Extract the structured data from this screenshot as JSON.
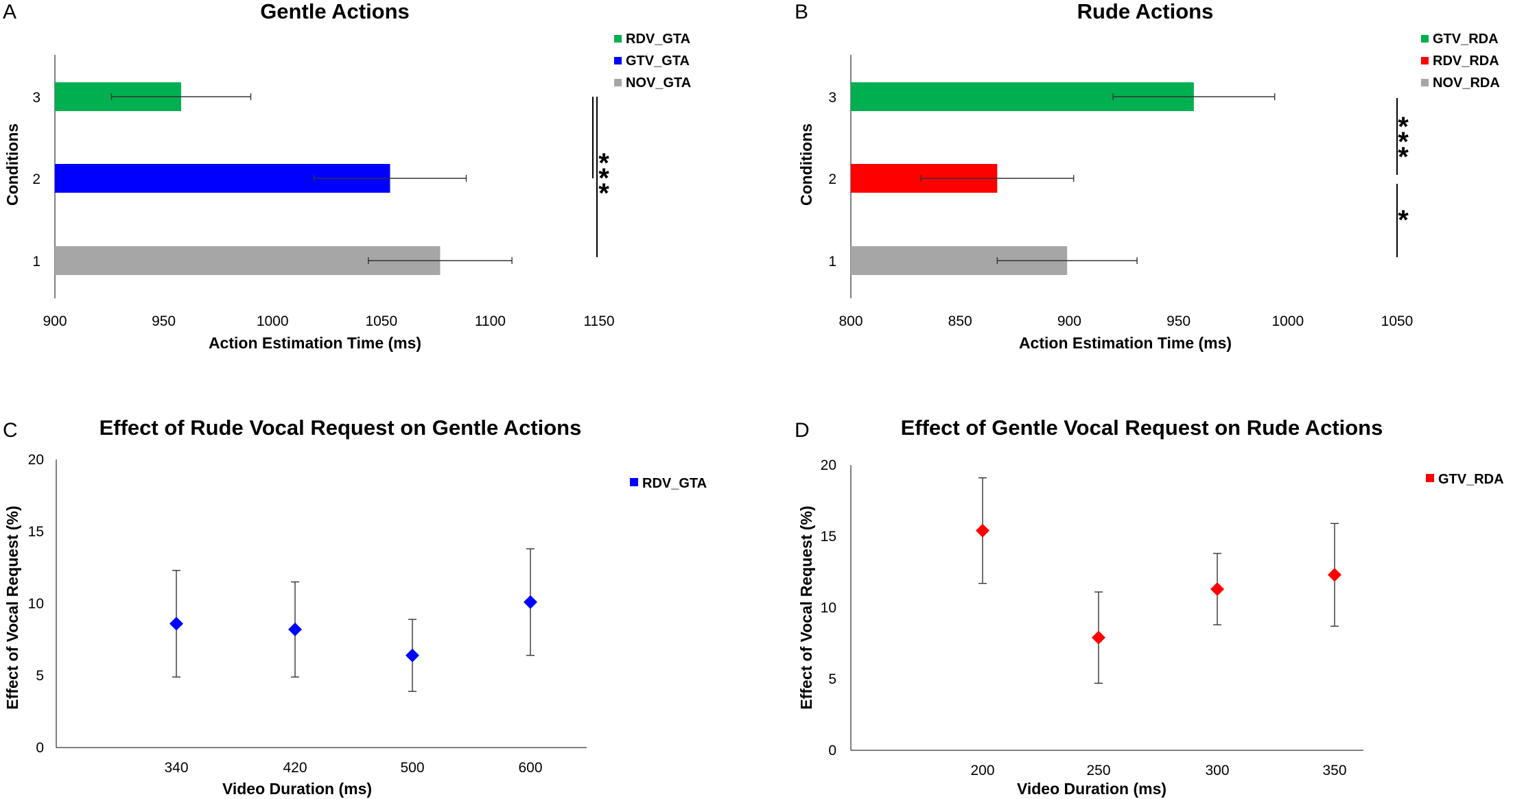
{
  "chart_data": [
    {
      "panel": "A",
      "type": "bar",
      "orientation": "horizontal",
      "title": "Gentle Actions",
      "xlabel": "Action Estimation Time (ms)",
      "ylabel": "Conditions",
      "xlim": [
        900,
        1150
      ],
      "xticks": [
        "900",
        "950",
        "1000",
        "1050",
        "1100",
        "1150"
      ],
      "categories": [
        "1",
        "2",
        "3"
      ],
      "values": [
        1077,
        1054,
        958
      ],
      "errors": [
        33,
        35,
        32
      ],
      "colors": [
        "#a6a6a6",
        "#0000ff",
        "#00b050"
      ],
      "legend": [
        {
          "label": "RDV_GTA",
          "color": "#00b050"
        },
        {
          "label": "GTV_GTA",
          "color": "#0000ff"
        },
        {
          "label": "NOV_GTA",
          "color": "#a6a6a6"
        }
      ],
      "significance": [
        {
          "between": [
            "2",
            "3"
          ],
          "label": ""
        },
        {
          "between": [
            "1",
            "3"
          ],
          "label": "***"
        }
      ]
    },
    {
      "panel": "B",
      "type": "bar",
      "orientation": "horizontal",
      "title": "Rude Actions",
      "xlabel": "Action Estimation Time (ms)",
      "ylabel": "Conditions",
      "xlim": [
        800,
        1050
      ],
      "xticks": [
        "800",
        "850",
        "900",
        "950",
        "1000",
        "1050"
      ],
      "categories": [
        "1",
        "2",
        "3"
      ],
      "values": [
        899,
        867,
        957
      ],
      "errors": [
        32,
        35,
        37
      ],
      "colors": [
        "#a6a6a6",
        "#ff0000",
        "#00b050"
      ],
      "legend": [
        {
          "label": "GTV_RDA",
          "color": "#00b050"
        },
        {
          "label": "RDV_RDA",
          "color": "#ff0000"
        },
        {
          "label": "NOV_RDA",
          "color": "#a6a6a6"
        }
      ],
      "significance": [
        {
          "between": [
            "2",
            "3"
          ],
          "label": "***"
        },
        {
          "between": [
            "1",
            "2"
          ],
          "label": "*"
        }
      ]
    },
    {
      "panel": "C",
      "type": "scatter",
      "title": "Effect of Rude Vocal Request on Gentle Actions",
      "xlabel": "Video Duration (ms)",
      "ylabel": "Effect of Vocal Request (%)",
      "ylim": [
        0,
        20
      ],
      "yticks": [
        "0",
        "5",
        "10",
        "15",
        "20"
      ],
      "categories": [
        "340",
        "420",
        "500",
        "600"
      ],
      "values": [
        8.6,
        8.2,
        6.4,
        10.1
      ],
      "errors": [
        3.7,
        3.3,
        2.5,
        3.7
      ],
      "color": "#0000ff",
      "legend": [
        {
          "label": "RDV_GTA",
          "color": "#0000ff"
        }
      ]
    },
    {
      "panel": "D",
      "type": "scatter",
      "title": "Effect of Gentle Vocal Request on Rude Actions",
      "xlabel": "Video Duration (ms)",
      "ylabel": "Effect of Vocal Request (%)",
      "ylim": [
        0,
        20
      ],
      "yticks": [
        "0",
        "5",
        "10",
        "15",
        "20"
      ],
      "categories": [
        "200",
        "250",
        "300",
        "350"
      ],
      "values": [
        15.4,
        7.9,
        11.3,
        12.3
      ],
      "errors": [
        3.7,
        3.2,
        2.5,
        3.6
      ],
      "color": "#ff0000",
      "legend": [
        {
          "label": "GTV_RDA",
          "color": "#ff0000"
        }
      ]
    }
  ]
}
